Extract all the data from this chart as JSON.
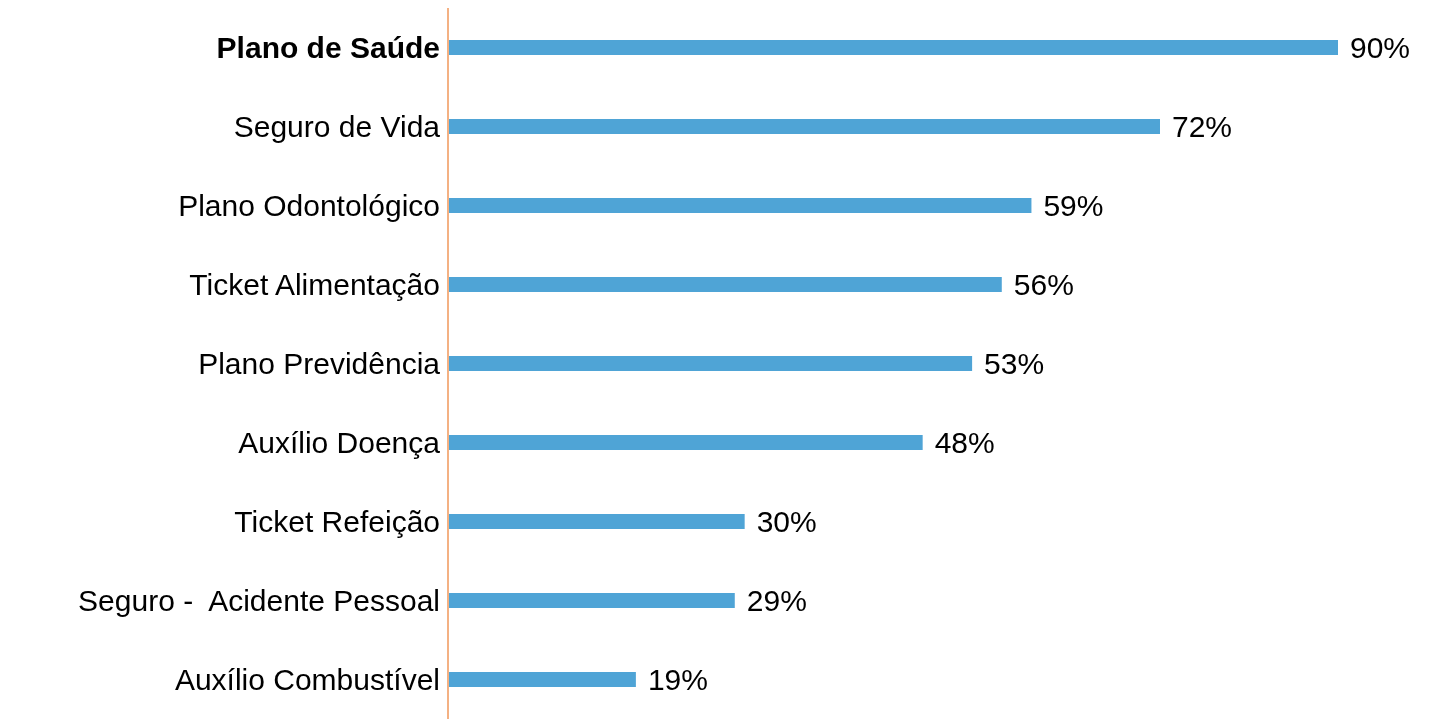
{
  "chart_data": {
    "type": "bar",
    "orientation": "horizontal",
    "categories": [
      "Plano de Saúde",
      "Seguro de Vida",
      "Plano Odontológico",
      "Ticket Alimentação",
      "Plano Previdência",
      "Auxílio Doença",
      "Ticket Refeição",
      "Seguro -  Acidente Pessoal",
      "Auxílio Combustível"
    ],
    "values": [
      90,
      72,
      59,
      56,
      53,
      48,
      30,
      29,
      19
    ],
    "value_labels": [
      "90%",
      "72%",
      "59%",
      "56%",
      "53%",
      "48%",
      "30%",
      "29%",
      "19%"
    ],
    "color": "#4fa4d6",
    "tick_labels": "y"
  }
}
